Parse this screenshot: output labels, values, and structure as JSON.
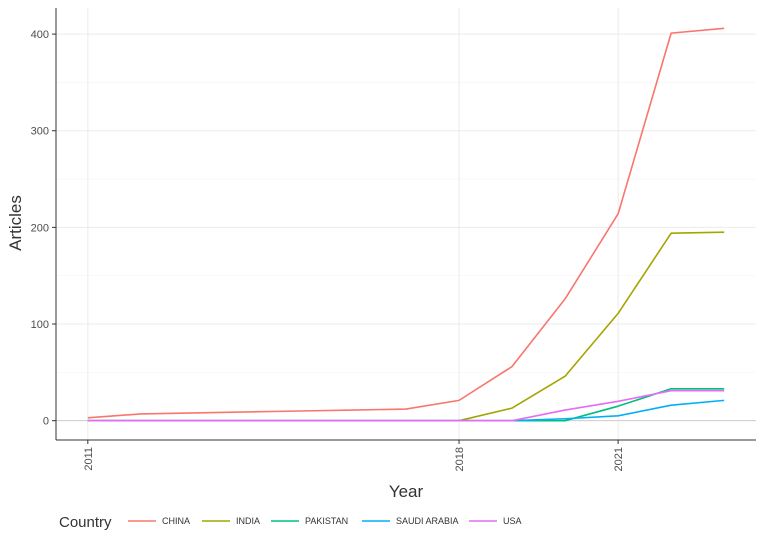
{
  "chart_data": {
    "type": "line",
    "xlabel": "Year",
    "ylabel": "Articles",
    "x_ticks": [
      2011,
      2018,
      2021
    ],
    "y_ticks": [
      0,
      100,
      200,
      300,
      400
    ],
    "xlim": [
      2010.4,
      2023.6
    ],
    "ylim": [
      -20,
      427
    ],
    "grid": true,
    "legend_position": "bottom",
    "legend_title": "Country",
    "x": [
      2011,
      2012,
      2013,
      2014,
      2015,
      2016,
      2017,
      2018,
      2019,
      2020,
      2021,
      2022,
      2023
    ],
    "series": [
      {
        "name": "CHINA",
        "color": "#F8766D",
        "values": [
          3,
          7,
          8,
          9,
          10,
          11,
          12,
          21,
          56,
          126,
          214,
          401,
          406
        ]
      },
      {
        "name": "INDIA",
        "color": "#A3A500",
        "values": [
          0,
          0,
          0,
          0,
          0,
          0,
          0,
          0,
          13,
          46,
          111,
          194,
          195
        ]
      },
      {
        "name": "PAKISTAN",
        "color": "#00BF7D",
        "values": [
          0,
          0,
          0,
          0,
          0,
          0,
          0,
          0,
          0,
          0,
          15,
          33,
          33
        ]
      },
      {
        "name": "SAUDI ARABIA",
        "color": "#00B0F6",
        "values": [
          0,
          0,
          0,
          0,
          0,
          0,
          0,
          0,
          0,
          2,
          5,
          16,
          21
        ]
      },
      {
        "name": "USA",
        "color": "#E76BF3",
        "values": [
          0,
          0,
          0,
          0,
          0,
          0,
          0,
          0,
          0,
          11,
          20,
          31,
          31
        ]
      }
    ]
  }
}
